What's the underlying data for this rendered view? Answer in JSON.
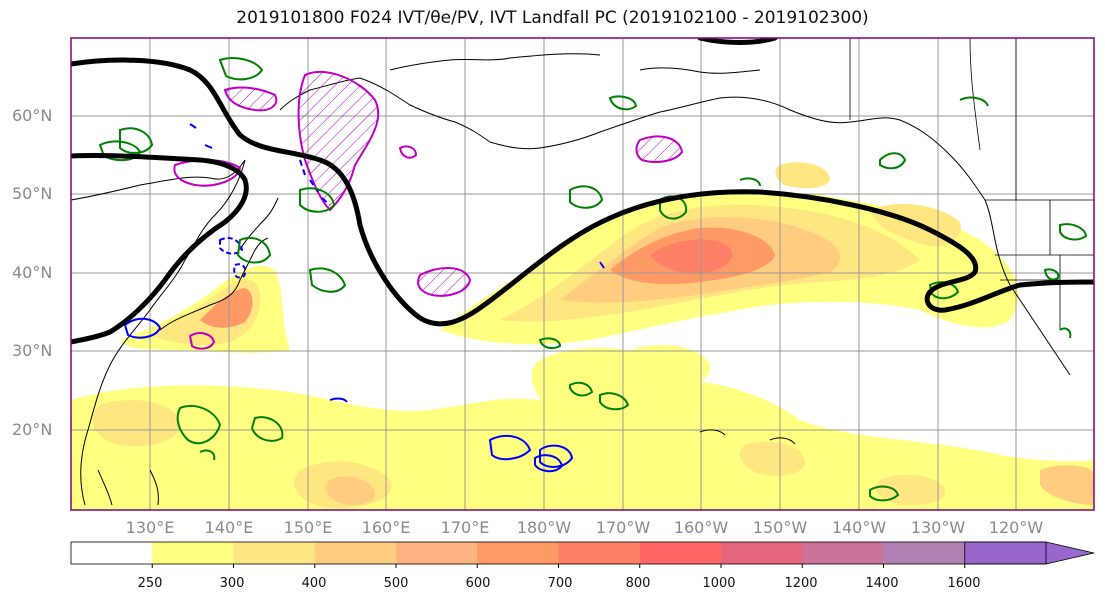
{
  "title": "2019101800 F024 IVT/θe/PV, IVT Landfall PC (2019102100 - 2019102300)",
  "lat_labels": [
    "60°N",
    "50°N",
    "40°N",
    "30°N",
    "20°N"
  ],
  "lon_labels": [
    "130°E",
    "140°E",
    "150°E",
    "160°E",
    "170°E",
    "180°W",
    "170°W",
    "160°W",
    "150°W",
    "140°W",
    "130°W",
    "120°W"
  ],
  "colorbar": {
    "ticks": [
      "250",
      "300",
      "400",
      "500",
      "600",
      "700",
      "800",
      "1000",
      "1200",
      "1400",
      "1600"
    ],
    "colors": [
      "#ffffff",
      "#ffff80",
      "#ffe680",
      "#ffcc80",
      "#ffb380",
      "#ff9966",
      "#ff8066",
      "#ff6666",
      "#e6667f",
      "#cc7399",
      "#b380b3",
      "#9966cc"
    ]
  },
  "legend_colors": {
    "ivt_pc_contour": "#000000",
    "theta_e_contour": "#008000",
    "pv_contour_blue": "#0000ff",
    "pv_contour_magenta": "#c000c0",
    "frame": "#800080"
  }
}
